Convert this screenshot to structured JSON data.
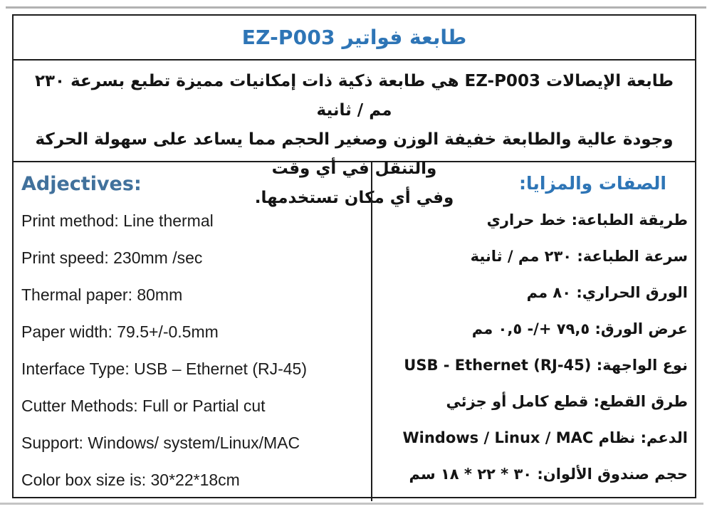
{
  "colors": {
    "title_blue": "#2e75b6",
    "left_header_blue": "#41719c",
    "right_header_blue": "#2e75b6",
    "border_black": "#1d1d1d",
    "text_black": "#141414"
  },
  "header": {
    "title": "طابعة فواتير EZ-P003"
  },
  "description": {
    "lines": [
      "طابعة الإيصالات EZ-P003 هي طابعة ذكية ذات إمكانيات مميزة تطبع بسرعة ٢٣٠ مم / ثانية",
      "وجودة عالية والطابعة خفيفة الوزن وصغير الحجم مما يساعد على سهولة الحركة والتنقل في أي وقت",
      "وفي أي مكان تستخدمها."
    ]
  },
  "left_column": {
    "header": "Adjectives:",
    "items": [
      "Print method: Line thermal",
      "Print speed: 230mm /sec",
      "Thermal paper: 80mm",
      "Paper width: 79.5+/-0.5mm",
      "Interface Type: USB – Ethernet (RJ-45)",
      "Cutter Methods: Full or Partial cut",
      "Support: Windows/ system/Linux/MAC",
      "Color box size is: 30*22*18cm"
    ]
  },
  "right_column": {
    "header": "الصفات والمزايا:",
    "items": [
      "طريقة الطباعة: خط حراري",
      "سرعة الطباعة: ٢٣٠ مم / ثانية",
      "الورق الحراري: ٨٠ مم",
      "عرض الورق: ٧٩,٥ +/- ٠,٥ مم",
      "نوع الواجهة: USB - Ethernet (RJ-45)",
      "طرق القطع: قطع كامل أو جزئي",
      "الدعم: نظام Windows / Linux / MAC",
      "حجم صندوق الألوان: ٣٠ * ٢٢ * ١٨ سم"
    ]
  }
}
